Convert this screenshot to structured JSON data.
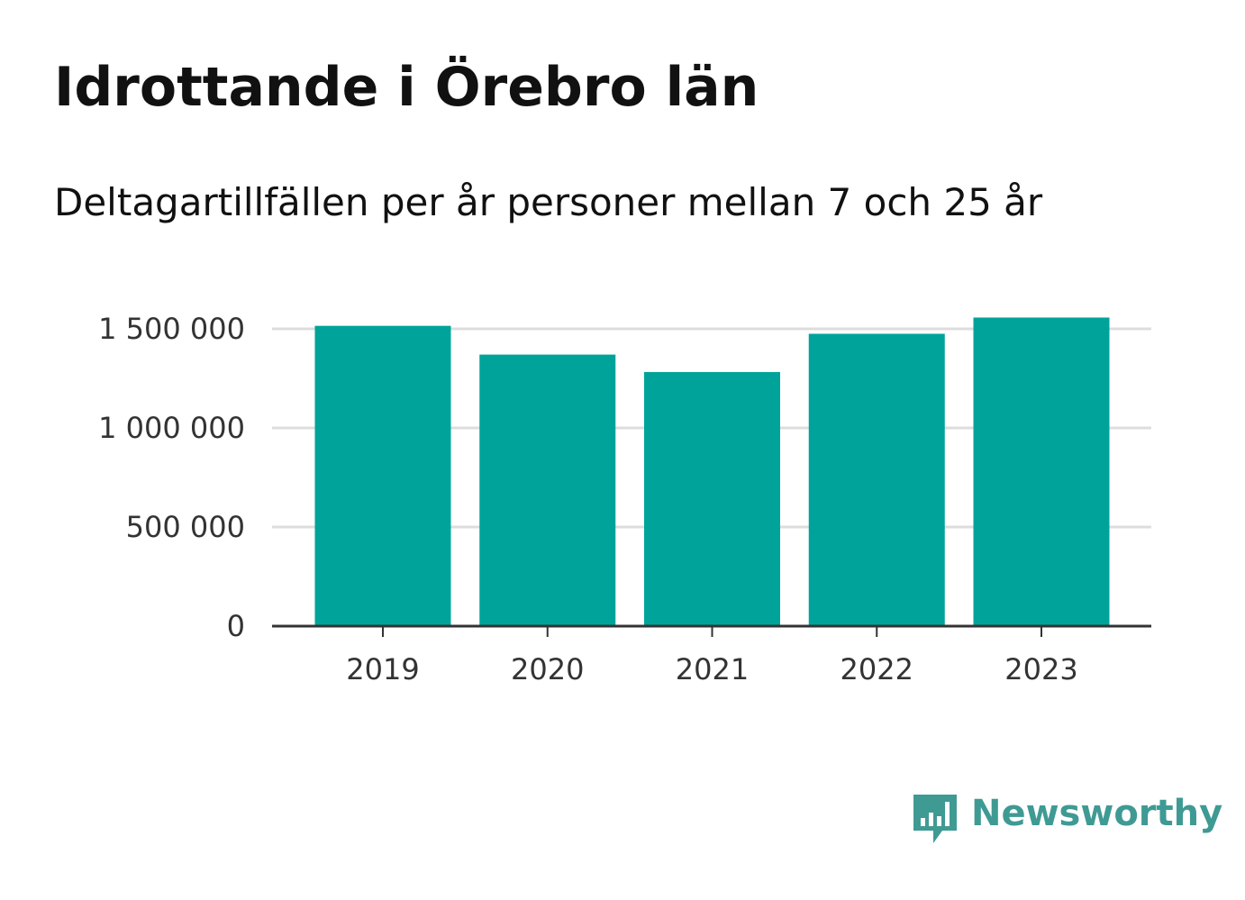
{
  "header": {
    "title": "Idrottande i Örebro län",
    "subtitle": "Deltagartillfällen per år personer mellan 7 och 25 år"
  },
  "chart_data": {
    "type": "bar",
    "categories": [
      "2019",
      "2020",
      "2021",
      "2022",
      "2023"
    ],
    "values": [
      1515000,
      1370000,
      1282000,
      1475000,
      1557000
    ],
    "xlabel": "",
    "ylabel": "",
    "ylim": [
      0,
      1650000
    ],
    "yticks": [
      0,
      500000,
      1000000,
      1500000
    ],
    "ytick_labels": [
      "0",
      "500 000",
      "1 000 000",
      "1 500 000"
    ],
    "grid": true,
    "bar_color": "#00a39a",
    "grid_color": "#dddddd",
    "axis_color": "#333333"
  },
  "brand": {
    "name": "Newsworthy",
    "icon": "newsworthy-logo-icon",
    "color": "#3f9a94"
  }
}
